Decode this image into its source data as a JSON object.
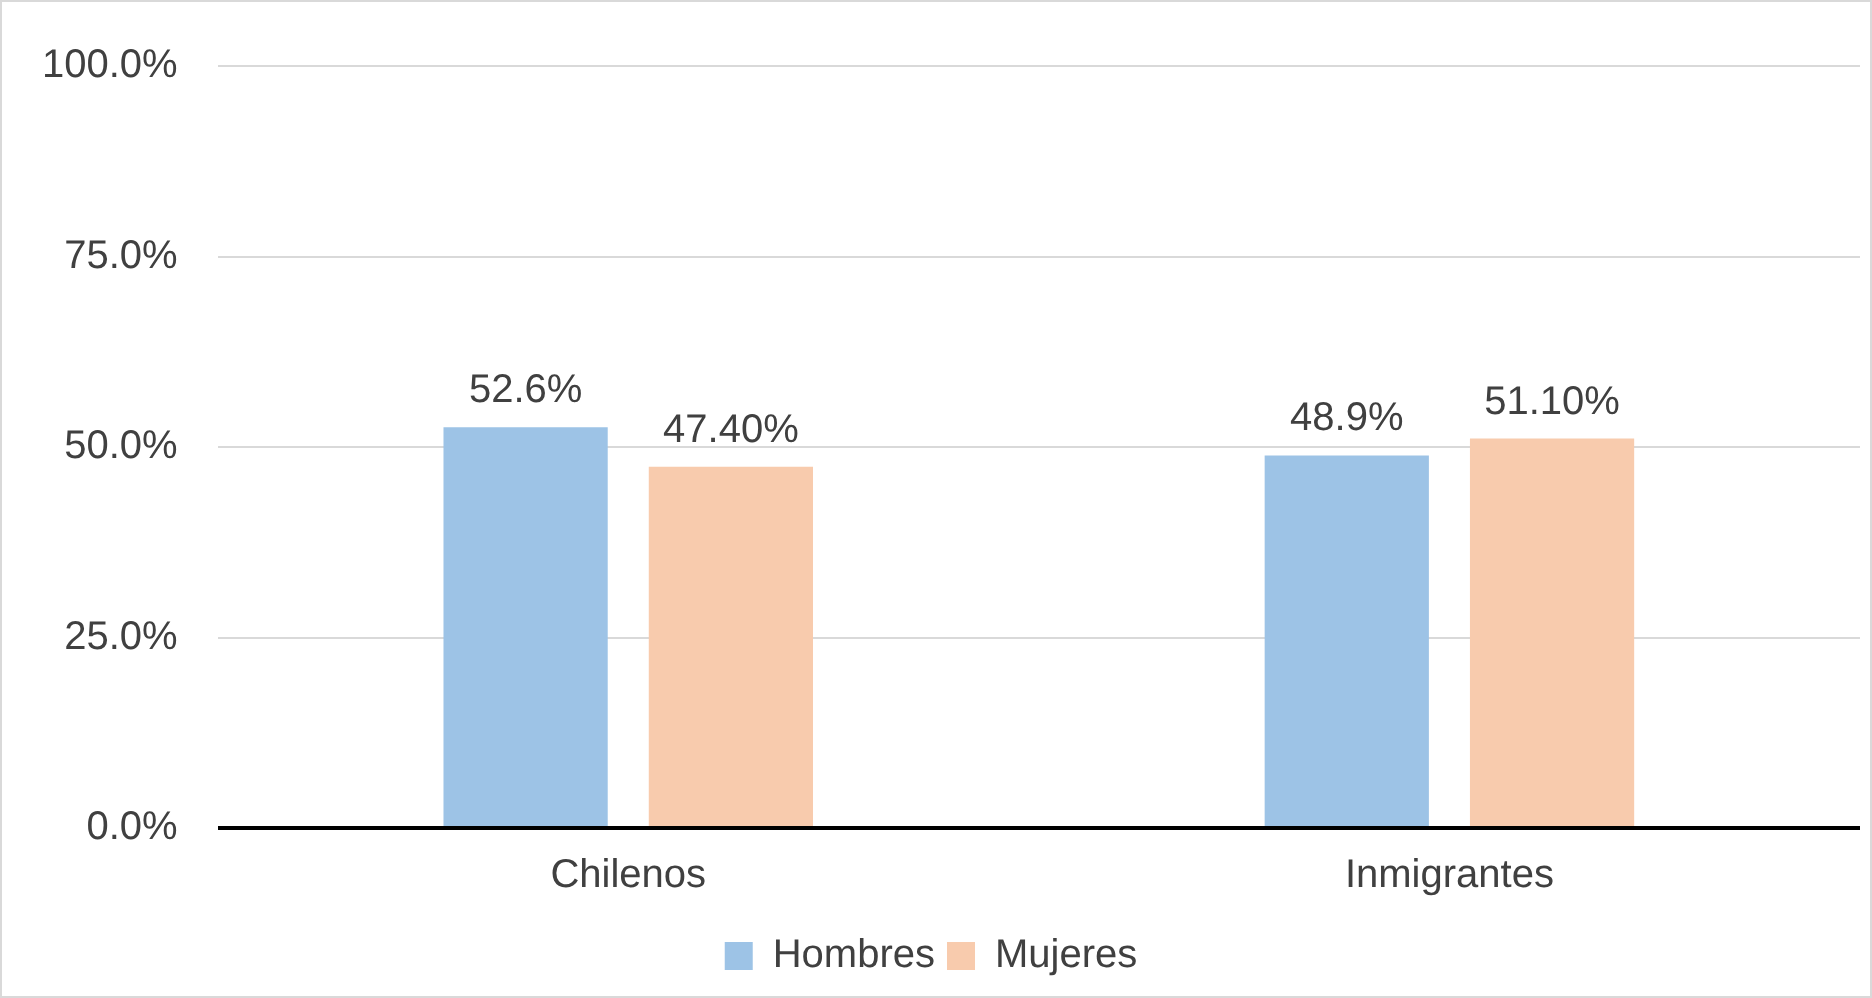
{
  "chart_data": {
    "type": "bar",
    "categories": [
      "Chilenos",
      "Inmigrantes"
    ],
    "series": [
      {
        "name": "Hombres",
        "color": "#9dc3e6",
        "values": [
          52.6,
          48.9
        ],
        "value_labels": [
          "52.6%",
          "48.9%"
        ]
      },
      {
        "name": "Mujeres",
        "color": "#f8cbad",
        "values": [
          47.4,
          51.1
        ],
        "value_labels": [
          "47.40%",
          "51.10%"
        ]
      }
    ],
    "ylim": [
      0,
      100
    ],
    "yticks": [
      {
        "value": 0,
        "label": "0.0%"
      },
      {
        "value": 25,
        "label": "25.0%"
      },
      {
        "value": 50,
        "label": "50.0%"
      },
      {
        "value": 75,
        "label": "75.0%"
      },
      {
        "value": 100,
        "label": "100.0%"
      }
    ],
    "grid": "y",
    "legend": "bottom"
  }
}
